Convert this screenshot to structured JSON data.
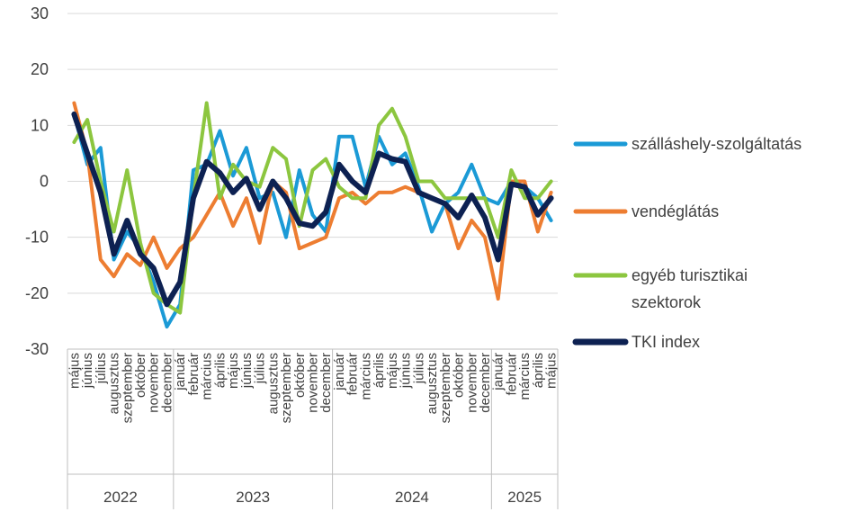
{
  "chart_data": {
    "type": "line",
    "title": "",
    "ylim": [
      -30,
      30
    ],
    "yticks": [
      "30",
      "20",
      "10",
      "0",
      "-10",
      "-20",
      "-30"
    ],
    "grid": true,
    "legend_position": "right",
    "categories": [
      "május",
      "június",
      "július",
      "augusztus",
      "szeptember",
      "október",
      "november",
      "december",
      "január",
      "február",
      "március",
      "április",
      "május",
      "június",
      "július",
      "augusztus",
      "szeptember",
      "október",
      "november",
      "december",
      "január",
      "február",
      "március",
      "április",
      "május",
      "június",
      "július",
      "augusztus",
      "szeptember",
      "október",
      "november",
      "december",
      "január",
      "február",
      "március",
      "április",
      "május"
    ],
    "years": [
      {
        "label": "2022",
        "start": 0,
        "end": 7
      },
      {
        "label": "2023",
        "start": 8,
        "end": 19
      },
      {
        "label": "2024",
        "start": 20,
        "end": 31
      },
      {
        "label": "2025",
        "start": 32,
        "end": 36
      }
    ],
    "series": [
      {
        "name": "szálláshely-szolgáltatás",
        "color": "#1b9ad6",
        "width": 4,
        "values": [
          12,
          3,
          6,
          -14,
          -9,
          -12,
          -18,
          -26,
          -22,
          2,
          3,
          9,
          1,
          6,
          -3,
          -2,
          -10,
          2,
          -6,
          -9,
          8,
          8,
          -1,
          8,
          3,
          5,
          -1,
          -9,
          -4,
          -2,
          3,
          -3,
          -4,
          0,
          -1,
          -3,
          -7
        ]
      },
      {
        "name": "vendéglátás",
        "color": "#ed7d31",
        "width": 4,
        "values": [
          14,
          5,
          -14,
          -17,
          -13,
          -15,
          -10,
          -15.5,
          -12,
          -10,
          -6,
          -2,
          -8,
          -3,
          -11,
          0,
          -2,
          -12,
          -11,
          -10,
          -3,
          -2,
          -4,
          -2,
          -2,
          -1,
          -2,
          -3,
          -4,
          -12,
          -7,
          -10,
          -21,
          0,
          0,
          -9,
          -2
        ]
      },
      {
        "name": "egyéb turisztikai szektorok",
        "color": "#8cc63f",
        "width": 4,
        "values": [
          7,
          11,
          0,
          -9,
          2,
          -11,
          -20,
          -22,
          -23.5,
          -3,
          14,
          -3,
          3,
          0,
          -1,
          6,
          4,
          -8,
          2,
          4,
          -1,
          -3,
          -3,
          10,
          13,
          8,
          0,
          0,
          -3,
          -3,
          -3,
          -3,
          -10,
          2,
          -3,
          -3,
          0
        ]
      },
      {
        "name": "TKI index",
        "color": "#0d2152",
        "width": 6,
        "values": [
          12,
          5,
          -2,
          -13,
          -7,
          -13,
          -15.5,
          -22,
          -18,
          -3,
          3.5,
          1.5,
          -2,
          0.5,
          -5,
          0,
          -3,
          -7.5,
          -8,
          -5.5,
          3,
          0,
          -2,
          5,
          4,
          3.5,
          -2,
          -3,
          -4,
          -6.5,
          -2.5,
          -6.5,
          -14,
          -0.5,
          -1,
          -6,
          -3
        ]
      }
    ]
  }
}
